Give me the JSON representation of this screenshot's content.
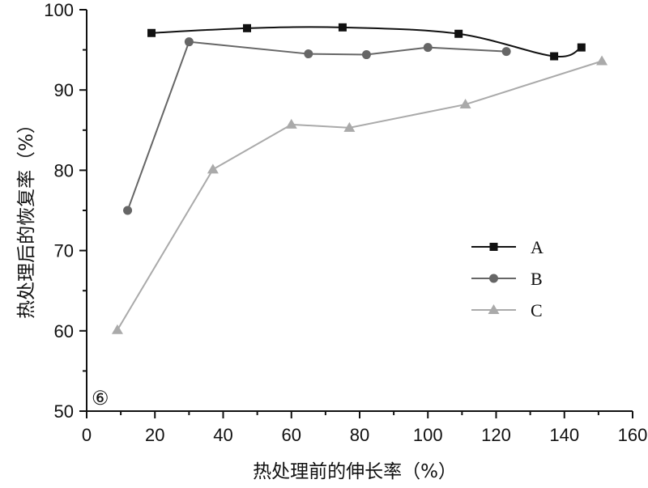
{
  "chart_data": {
    "type": "line",
    "xlabel": "热处理前的伸长率（%）",
    "ylabel": "热处理后的恢复率（%）",
    "panel_label": "⑥",
    "xlim": [
      0,
      160
    ],
    "ylim": [
      50,
      100
    ],
    "x_ticks": [
      0,
      20,
      40,
      60,
      80,
      100,
      120,
      140,
      160
    ],
    "y_ticks": [
      50,
      60,
      70,
      80,
      90,
      100
    ],
    "grid": false,
    "legend_position": "right-middle",
    "series": [
      {
        "name": "A",
        "color": "#111111",
        "marker": "square",
        "smooth": true,
        "x": [
          19,
          47,
          75,
          109,
          137,
          145
        ],
        "y": [
          97.1,
          97.7,
          97.8,
          97.0,
          94.2,
          95.3
        ]
      },
      {
        "name": "B",
        "color": "#666666",
        "marker": "circle",
        "smooth": false,
        "x": [
          12,
          30,
          65,
          82,
          100,
          123
        ],
        "y": [
          75.0,
          96.0,
          94.5,
          94.4,
          95.3,
          94.8
        ]
      },
      {
        "name": "C",
        "color": "#aaaaaa",
        "marker": "triangle",
        "smooth": false,
        "x": [
          9,
          37,
          60,
          77,
          111,
          151
        ],
        "y": [
          60.1,
          80.1,
          85.7,
          85.3,
          88.2,
          93.6
        ]
      }
    ]
  }
}
